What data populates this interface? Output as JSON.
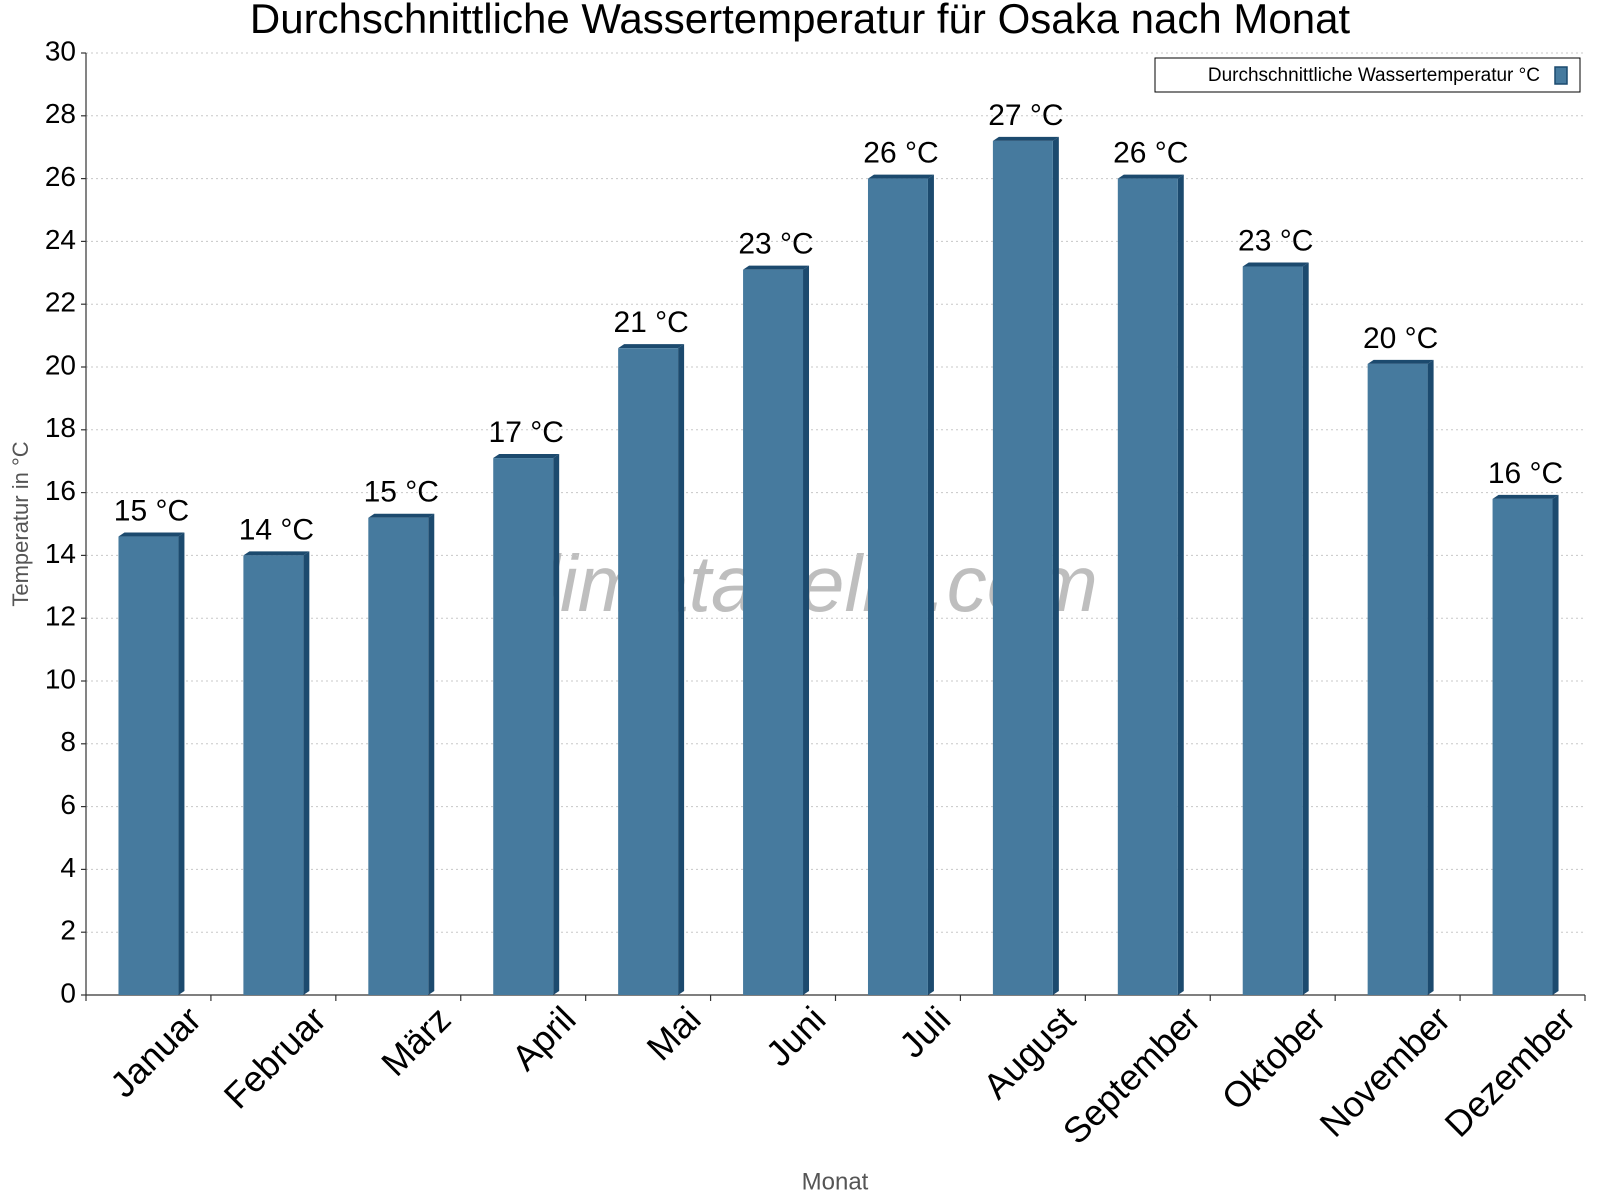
{
  "chart_data": {
    "type": "bar",
    "title": "Durchschnittliche Wassertemperatur für Osaka nach Monat",
    "watermark": "klimatabelle.com",
    "x_label": "Monat",
    "y_label": "Temperatur in °C",
    "categories": [
      "Januar",
      "Februar",
      "März",
      "April",
      "Mai",
      "Juni",
      "Juli",
      "August",
      "September",
      "Oktober",
      "November",
      "Dezember"
    ],
    "series": [
      {
        "name": "Durchschnittliche Wassertemperatur °C",
        "color": "#467a9e",
        "values": [
          14.6,
          14.0,
          15.2,
          17.1,
          20.6,
          23.1,
          26.0,
          27.2,
          26.0,
          23.2,
          20.1,
          15.8
        ],
        "value_labels": [
          "15 °C",
          "14 °C",
          "15 °C",
          "17 °C",
          "21 °C",
          "23 °C",
          "26 °C",
          "27 °C",
          "26 °C",
          "23 °C",
          "20 °C",
          "16 °C"
        ]
      }
    ],
    "ylim": [
      0,
      30
    ],
    "yticks": [
      0,
      2,
      4,
      6,
      8,
      10,
      12,
      14,
      16,
      18,
      20,
      22,
      24,
      26,
      28,
      30
    ],
    "grid": true,
    "legend": "top-right"
  }
}
